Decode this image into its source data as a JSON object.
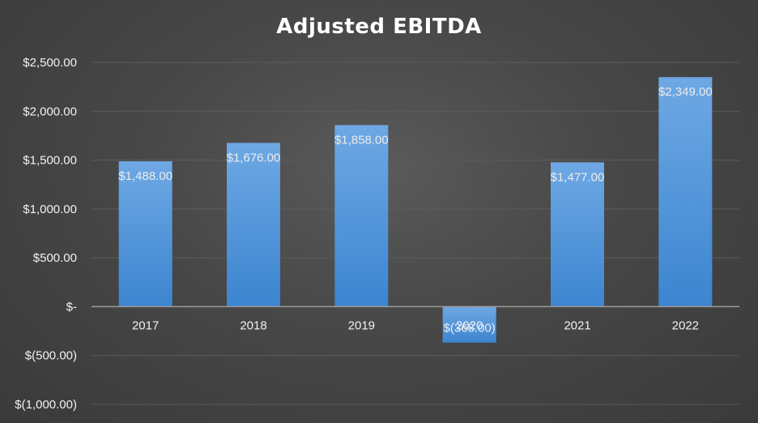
{
  "chart_data": {
    "type": "bar",
    "title": "Adjusted EBITDA",
    "categories": [
      "2017",
      "2018",
      "2019",
      "2020",
      "2021",
      "2022"
    ],
    "values": [
      1488,
      1676,
      1858,
      -368,
      1477,
      2349
    ],
    "data_labels": [
      "$1,488.00",
      "$1,676.00",
      "$1,858.00",
      "$(368.00)",
      "$1,477.00",
      "$2,349.00"
    ],
    "ylim": [
      -1000,
      2500
    ],
    "yticks": [
      2500,
      2000,
      1500,
      1000,
      500,
      0,
      -500,
      -1000
    ],
    "ytick_labels": [
      "$2,500.00",
      "$2,000.00",
      "$1,500.00",
      "$1,000.00",
      "$500.00",
      "$-",
      "$(500.00)",
      "$(1,000.00)"
    ],
    "xlabel": "",
    "ylabel": "",
    "grid": true,
    "legend": "none",
    "colors": {
      "bar_top": "#6ea8e4",
      "bar_bottom": "#3c85d0",
      "gridline": "#5c5c5c",
      "axis": "#9a9a9a",
      "text": "#f2f2f2"
    }
  }
}
